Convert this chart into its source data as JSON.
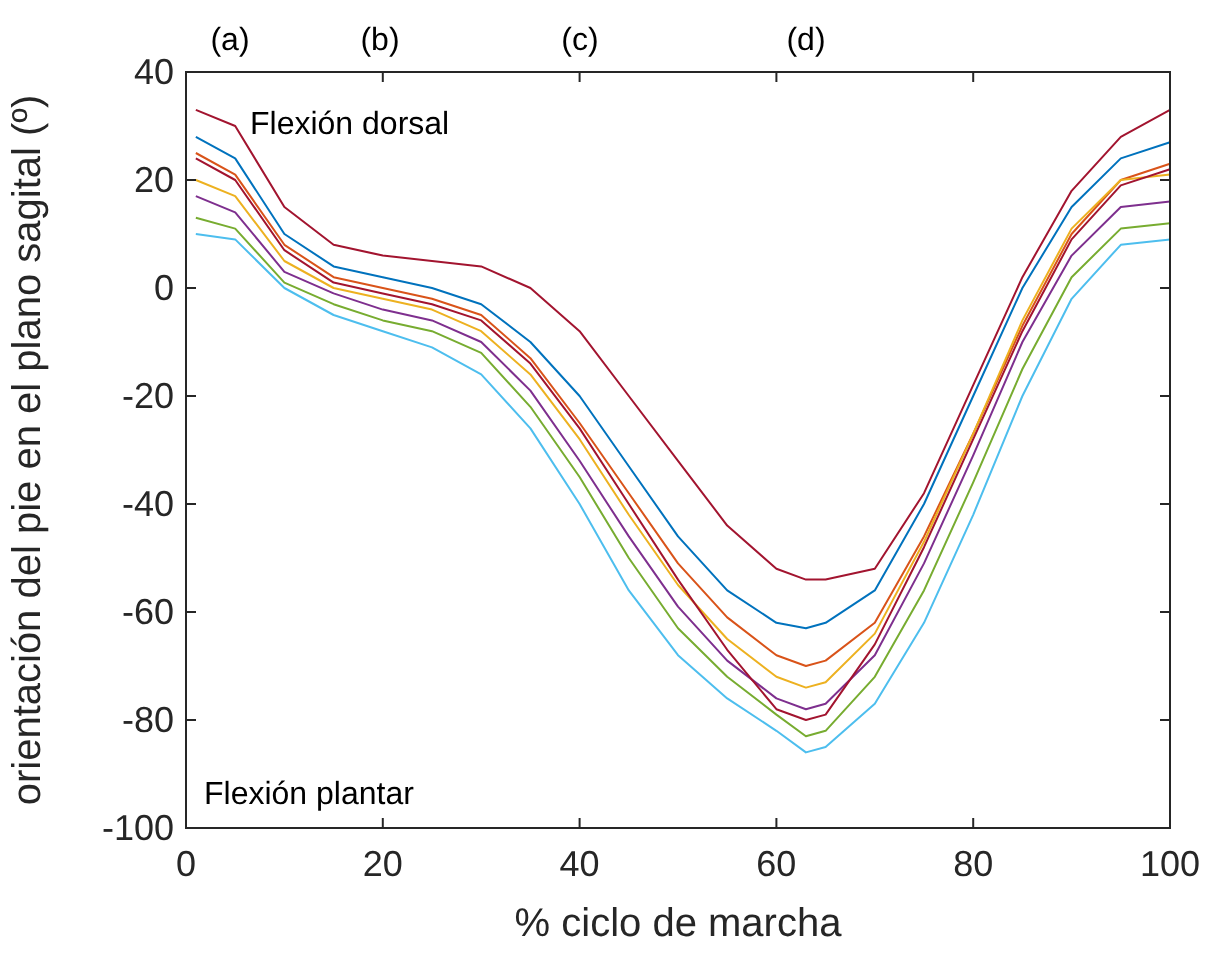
{
  "chart_data": {
    "type": "line",
    "xlabel": "% ciclo de marcha",
    "ylabel": "orientación del pie en el plano sagital (º)",
    "x": [
      1,
      5,
      10,
      15,
      20,
      25,
      30,
      35,
      40,
      45,
      50,
      55,
      60,
      63,
      65,
      70,
      75,
      80,
      85,
      90,
      95,
      100
    ],
    "series": [
      {
        "color": "#a2142f",
        "values": [
          33,
          30,
          15,
          8,
          6,
          5,
          4,
          0,
          -8,
          -20,
          -32,
          -44,
          -52,
          -54,
          -54,
          -52,
          -38,
          -18,
          2,
          18,
          28,
          33
        ]
      },
      {
        "color": "#0072bd",
        "values": [
          28,
          24,
          10,
          4,
          2,
          0,
          -3,
          -10,
          -20,
          -33,
          -46,
          -56,
          -62,
          -63,
          -62,
          -56,
          -40,
          -20,
          0,
          15,
          24,
          27
        ]
      },
      {
        "color": "#d95319",
        "values": [
          25,
          21,
          8,
          2,
          0,
          -2,
          -5,
          -13,
          -25,
          -38,
          -51,
          -61,
          -68,
          -70,
          -69,
          -62,
          -46,
          -27,
          -7,
          10,
          20,
          23
        ]
      },
      {
        "color": "#edb120",
        "values": [
          20,
          17,
          5,
          0,
          -2,
          -4,
          -8,
          -16,
          -28,
          -42,
          -55,
          -65,
          -72,
          -74,
          -73,
          -64,
          -47,
          -27,
          -6,
          11,
          20,
          21
        ]
      },
      {
        "color": "#7e2f8e",
        "values": [
          17,
          14,
          3,
          -1,
          -4,
          -6,
          -10,
          -19,
          -32,
          -46,
          -59,
          -69,
          -76,
          -78,
          -77,
          -68,
          -51,
          -31,
          -10,
          6,
          15,
          16
        ]
      },
      {
        "color": "#77ac30",
        "values": [
          13,
          11,
          1,
          -3,
          -6,
          -8,
          -12,
          -22,
          -35,
          -50,
          -63,
          -72,
          -79,
          -83,
          -82,
          -72,
          -56,
          -36,
          -15,
          2,
          11,
          12
        ]
      },
      {
        "color": "#4dbeee",
        "values": [
          10,
          9,
          0,
          -5,
          -8,
          -11,
          -16,
          -26,
          -40,
          -56,
          -68,
          -76,
          -82,
          -86,
          -85,
          -77,
          -62,
          -42,
          -20,
          -2,
          8,
          9
        ]
      },
      {
        "color": "#a2142f",
        "values": [
          24,
          20,
          7,
          1,
          -1,
          -3,
          -6,
          -14,
          -26,
          -40,
          -54,
          -67,
          -78,
          -80,
          -79,
          -66,
          -48,
          -28,
          -8,
          9,
          19,
          22
        ]
      }
    ],
    "xlim": [
      0,
      100
    ],
    "xticks": [
      0,
      20,
      40,
      60,
      80,
      100
    ],
    "ylim": [
      -100,
      40
    ],
    "yticks": [
      -100,
      -80,
      -60,
      -40,
      -20,
      0,
      20,
      40
    ],
    "grid": false,
    "marker": "none",
    "line_style": "solid",
    "annotations": [
      "Flexión dorsal",
      "Flexión plantar",
      "(a)",
      "(b)",
      "(c)",
      "(d)"
    ]
  }
}
